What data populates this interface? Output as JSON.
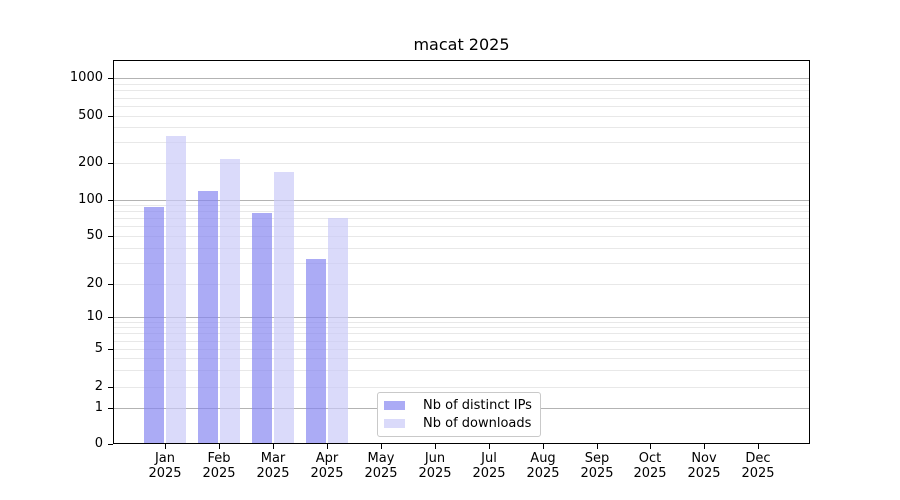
{
  "chart_data": {
    "type": "bar",
    "title": "macat 2025",
    "yscale": "symlog",
    "categories": [
      "Jan",
      "Feb",
      "Mar",
      "Apr",
      "May",
      "Jun",
      "Jul",
      "Aug",
      "Sep",
      "Oct",
      "Nov",
      "Dec"
    ],
    "year_label": "2025",
    "yticks": [
      1000,
      500,
      200,
      100,
      50,
      20,
      10,
      5,
      2,
      1,
      0
    ],
    "ylim": [
      0,
      1400
    ],
    "grid": true,
    "legend_position": "lower center-right",
    "series": [
      {
        "name": "Nb of distinct IPs",
        "color": "rgba(131,131,240,0.68)",
        "solid_color": "#aaaaf4",
        "values": [
          87,
          118,
          78,
          32,
          null,
          null,
          null,
          null,
          null,
          null,
          null,
          null
        ]
      },
      {
        "name": "Nb of downloads",
        "color": "rgba(201,201,248,0.68)",
        "solid_color": "#dadaf9",
        "values": [
          338,
          216,
          170,
          70,
          null,
          null,
          null,
          null,
          null,
          null,
          null,
          null
        ]
      }
    ],
    "colors": {
      "major_grid": "#b3b3b3",
      "minor_grid": "#e8e8e8",
      "axis": "#000000",
      "background": "#ffffff"
    }
  }
}
